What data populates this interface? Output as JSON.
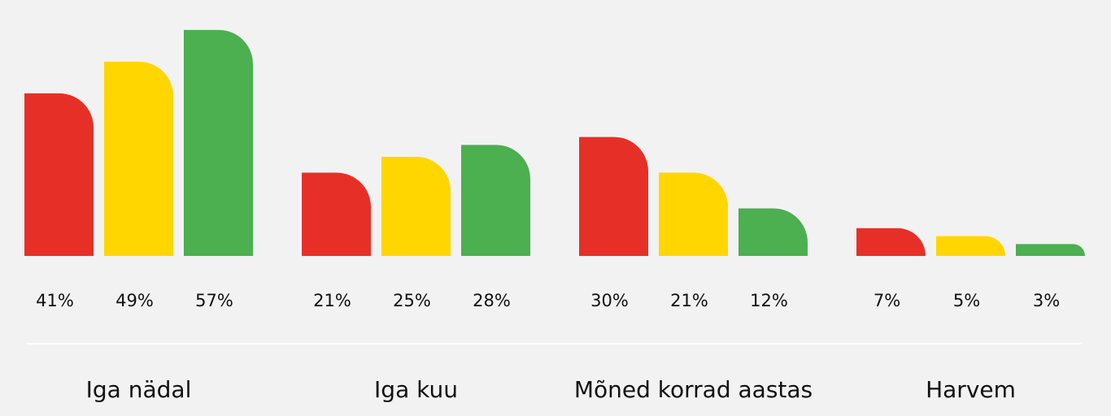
{
  "chart_data": {
    "type": "bar",
    "categories": [
      "Iga nädal",
      "Iga kuu",
      "Mõned korrad aastas",
      "Harvem"
    ],
    "series": [
      {
        "color": "#e63027",
        "values": [
          41,
          21,
          30,
          7
        ],
        "value_labels": [
          "41%",
          "21%",
          "30%",
          "7%"
        ]
      },
      {
        "color": "#ffd600",
        "values": [
          49,
          25,
          21,
          5
        ],
        "value_labels": [
          "49%",
          "25%",
          "21%",
          "5%"
        ]
      },
      {
        "color": "#4caf50",
        "values": [
          57,
          28,
          12,
          3
        ],
        "value_labels": [
          "57%",
          "28%",
          "12%",
          "3%"
        ]
      }
    ]
  }
}
